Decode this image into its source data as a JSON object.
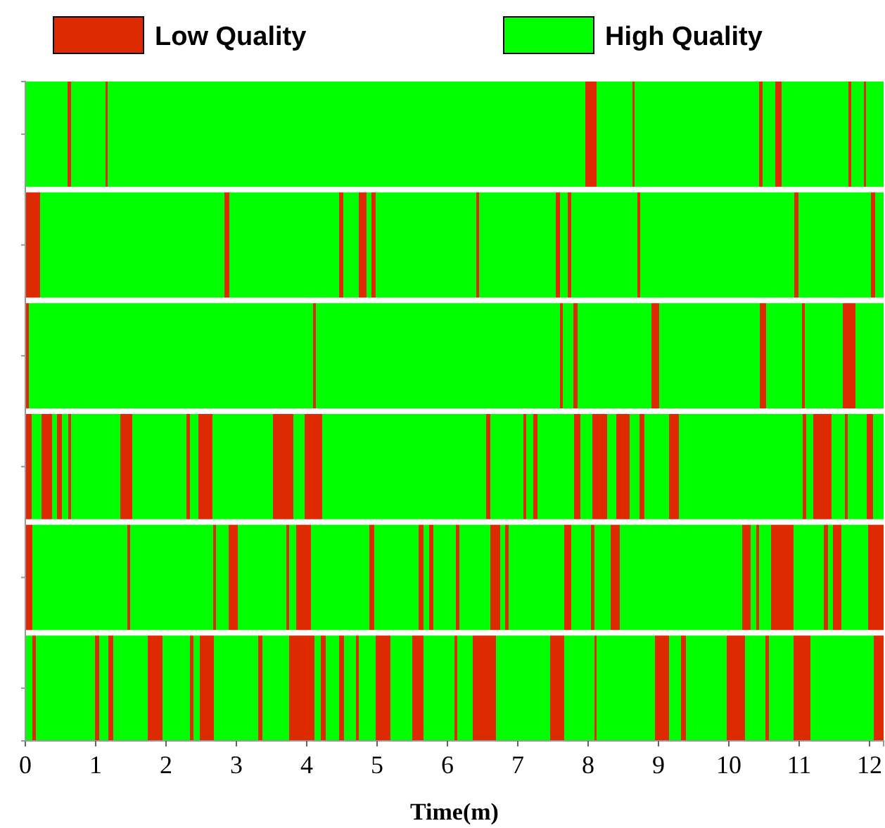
{
  "chart_data": {
    "type": "bar",
    "orientation": "horizontal",
    "stacked": true,
    "xlabel": "Time(m)",
    "legend": "top",
    "categories": [
      null,
      null,
      null,
      null,
      null,
      null
    ],
    "xlim": [
      0,
      12.2
    ],
    "xticks": [
      0,
      1,
      2,
      3,
      4,
      5,
      6,
      7,
      8,
      9,
      10,
      11,
      12
    ],
    "series": [
      {
        "name": "High Quality",
        "color": "#00ff00",
        "values": [
          0.6,
          null,
          null,
          null,
          null,
          0.1
        ]
      },
      {
        "name": "Low Quality",
        "color": "#dd2a00",
        "values": [
          0.05,
          0.21,
          0.05,
          0.09,
          0.1,
          0.05
        ]
      },
      {
        "color": "#00ff00",
        "values": [
          0.49,
          2.62,
          4.04,
          0.14,
          1.35,
          0.84
        ]
      },
      {
        "color": "#dd2a00",
        "values": [
          0.03,
          0.07,
          0.04,
          0.15,
          0.04,
          0.06
        ]
      },
      {
        "color": "#00ff00",
        "values": [
          6.79,
          1.56,
          3.47,
          0.07,
          1.18,
          0.13
        ]
      },
      {
        "color": "#dd2a00",
        "values": [
          0.16,
          0.06,
          0.04,
          0.07,
          0.04,
          0.07
        ]
      },
      {
        "color": "#00ff00",
        "values": [
          0.51,
          0.22,
          0.15,
          0.09,
          0.18,
          0.49
        ]
      },
      {
        "color": "#dd2a00",
        "values": [
          0.03,
          0.11,
          0.06,
          0.04,
          0.13,
          0.21
        ]
      },
      {
        "color": "#00ff00",
        "values": [
          1.77,
          0.07,
          1.05,
          0.7,
          0.69,
          0.39
        ]
      },
      {
        "color": "#dd2a00",
        "values": [
          0.05,
          0.06,
          0.11,
          0.17,
          0.04,
          0.05
        ]
      },
      {
        "color": "#00ff00",
        "values": [
          0.18,
          1.43,
          1.43,
          0.77,
          0.1,
          0.09
        ]
      },
      {
        "color": "#dd2a00",
        "values": [
          0.09,
          0.04,
          0.09,
          0.05,
          0.21,
          0.2
        ]
      },
      {
        "color": "#00ff00",
        "values": [
          0.95,
          1.09,
          0.51,
          0.12,
          0.83,
          0.63
        ]
      },
      {
        "color": "#dd2a00",
        "values": [
          0.04,
          0.06,
          0.04,
          0.2,
          0.07,
          0.06
        ]
      },
      {
        "color": "#00ff00",
        "values": [
          0.18,
          0.11,
          0.54,
          0.86,
          0.63,
          0.38
        ]
      },
      {
        "color": "#dd2a00",
        "values": [
          0.03,
          0.05,
          0.18,
          0.29,
          0.07,
          0.36
        ]
      },
      {
        "color": "#00ff00",
        "values": [
          0.25,
          0.94,
          0.4,
          0.16,
          0.08,
          0.09
        ]
      },
      {
        "color": "#dd2a00",
        "values": [
          null,
          0.04,
          null,
          0.25,
          0.06,
          0.07
        ]
      },
      {
        "color": "#00ff00",
        "values": [
          null,
          2.19,
          null,
          2.33,
          0.32,
          0.19
        ]
      },
      {
        "color": "#dd2a00",
        "values": [
          null,
          0.06,
          null,
          0.06,
          0.05,
          0.07
        ]
      },
      {
        "color": "#00ff00",
        "values": [
          null,
          1.03,
          null,
          0.47,
          0.44,
          0.17
        ]
      },
      {
        "color": "#dd2a00",
        "values": [
          null,
          0.06,
          null,
          0.04,
          0.14,
          0.04
        ]
      },
      {
        "color": "#00ff00",
        "values": [
          null,
          0.12,
          null,
          0.1,
          0.07,
          0.24
        ]
      },
      {
        "color": "#dd2a00",
        "values": [
          null,
          null,
          null,
          0.06,
          0.05,
          0.21
        ]
      },
      {
        "color": "#00ff00",
        "values": [
          null,
          null,
          null,
          0.52,
          0.79,
          0.31
        ]
      },
      {
        "color": "#dd2a00",
        "values": [
          null,
          null,
          null,
          0.09,
          0.1,
          0.16
        ]
      },
      {
        "color": "#00ff00",
        "values": [
          null,
          null,
          null,
          0.17,
          0.28,
          0.44
        ]
      },
      {
        "color": "#dd2a00",
        "values": [
          null,
          null,
          null,
          0.21,
          0.05,
          0.04
        ]
      },
      {
        "color": "#00ff00",
        "values": [
          null,
          null,
          null,
          0.13,
          0.23,
          0.22
        ]
      },
      {
        "color": "#dd2a00",
        "values": [
          null,
          null,
          null,
          0.19,
          0.13,
          0.33
        ]
      },
      {
        "color": "#00ff00",
        "values": [
          null,
          null,
          null,
          0.14,
          1.74,
          0.77
        ]
      },
      {
        "color": "#dd2a00",
        "values": [
          null,
          null,
          null,
          0.07,
          0.12,
          0.2
        ]
      },
      {
        "color": "#00ff00",
        "values": [
          null,
          null,
          null,
          0.35,
          0.08,
          0.43
        ]
      },
      {
        "color": "#dd2a00",
        "values": [
          null,
          null,
          null,
          0.14,
          0.04,
          0.03
        ]
      },
      {
        "color": "#00ff00",
        "values": [
          null,
          null,
          null,
          1.76,
          0.17,
          0.83
        ]
      },
      {
        "color": "#dd2a00",
        "values": [
          null,
          null,
          null,
          0.05,
          0.32,
          0.2
        ]
      },
      {
        "color": "#00ff00",
        "values": [
          null,
          null,
          null,
          0.1,
          0.43,
          0.17
        ]
      },
      {
        "color": "#dd2a00",
        "values": [
          null,
          null,
          null,
          0.26,
          0.06,
          0.07
        ]
      },
      {
        "color": "#00ff00",
        "values": [
          null,
          null,
          null,
          0.19,
          0.07,
          0.58
        ]
      },
      {
        "color": "#dd2a00",
        "values": [
          null,
          null,
          null,
          0.04,
          0.12,
          0.26
        ]
      },
      {
        "color": "#00ff00",
        "values": [
          null,
          null,
          null,
          0.27,
          0.38,
          0.29
        ]
      },
      {
        "color": "#dd2a00",
        "values": [
          null,
          null,
          null,
          0.09,
          0.22,
          0.05
        ]
      },
      {
        "color": "#00ff00",
        "values": [
          null,
          null,
          null,
          0.15,
          null,
          0.35
        ]
      },
      {
        "color": "#dd2a00",
        "values": [
          null,
          null,
          null,
          null,
          null,
          0.24
        ]
      },
      {
        "color": "#00ff00",
        "values": [
          null,
          null,
          null,
          null,
          null,
          0.9
        ]
      },
      {
        "color": "#dd2a00",
        "values": [
          null,
          null,
          null,
          null,
          null,
          0.14
        ]
      }
    ]
  }
}
